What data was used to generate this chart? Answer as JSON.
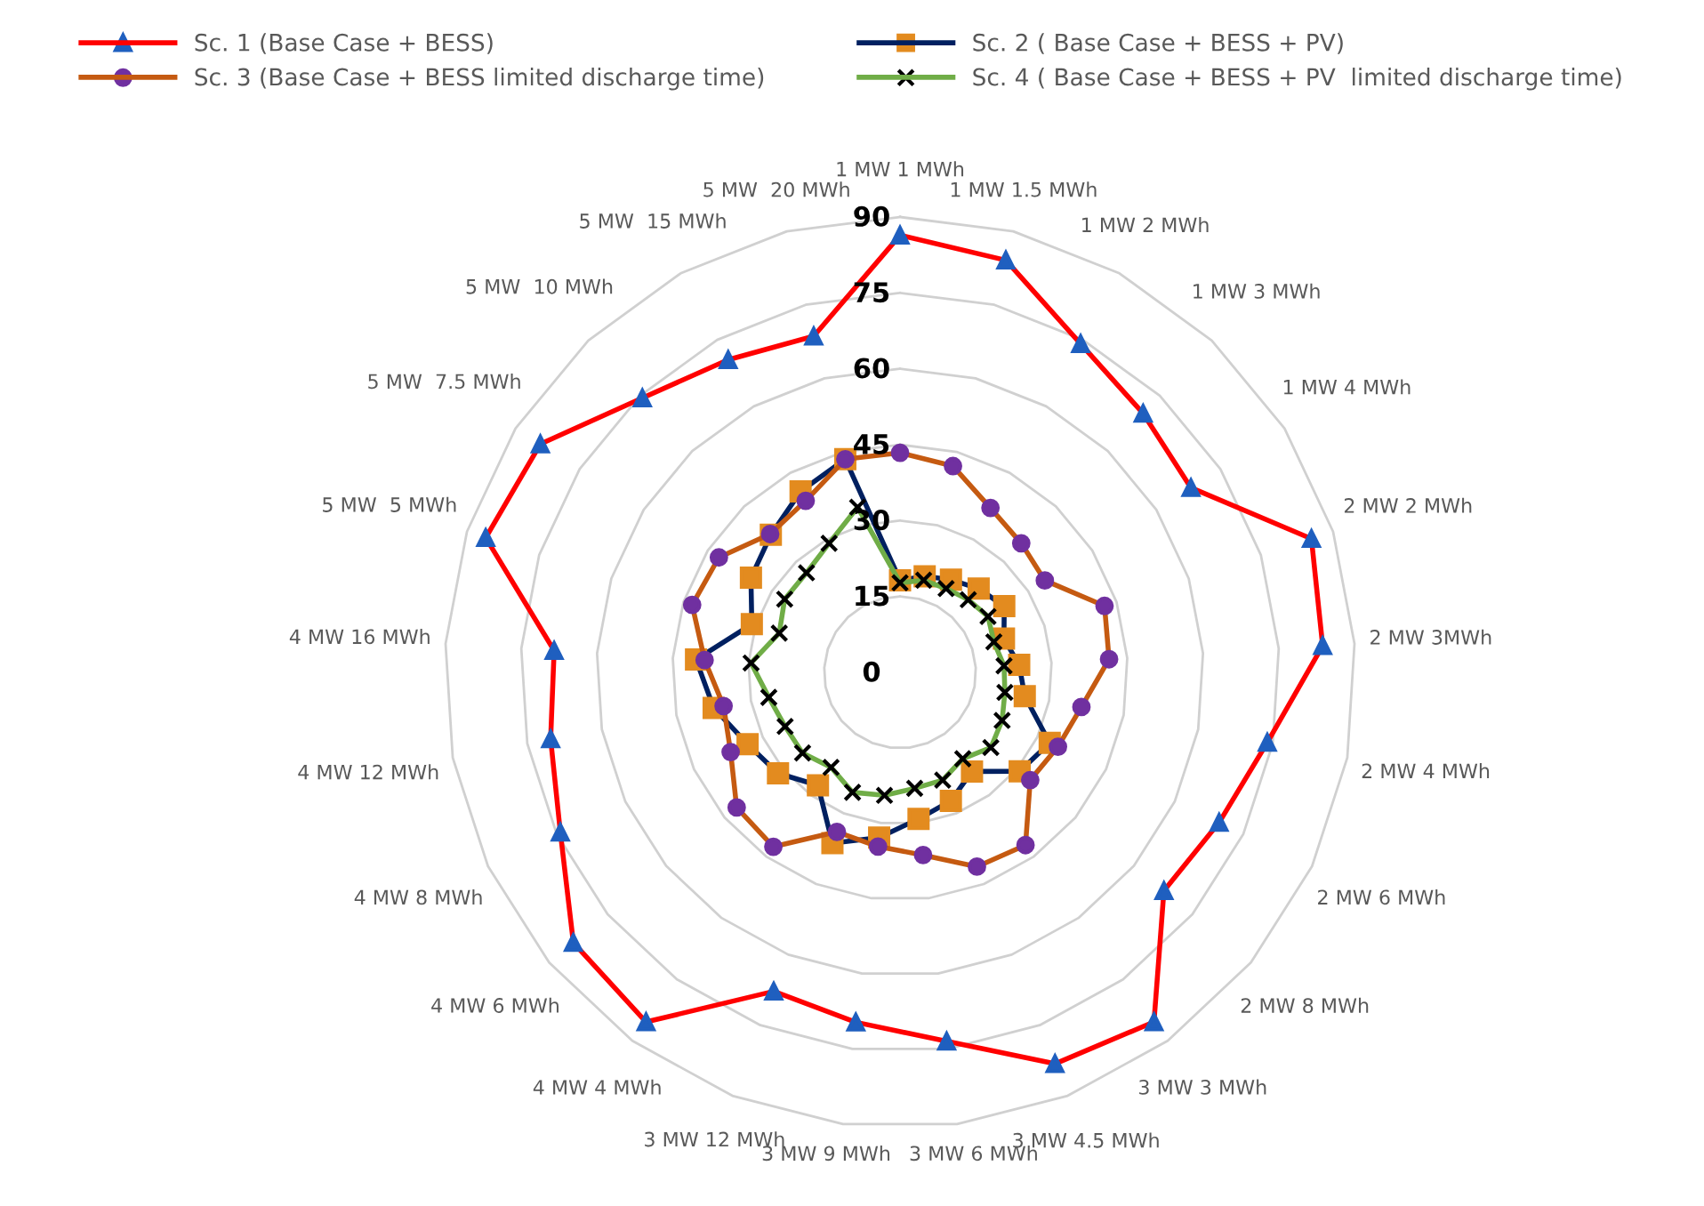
{
  "chart_data": {
    "type": "radar",
    "categories": [
      "1 MW 1 MWh",
      "1 MW 1.5 MWh",
      "1 MW 2 MWh",
      "1 MW 3 MWh",
      "1 MW 4 MWh",
      "2 MW 2 MWh",
      "2 MW 3MWh",
      "2 MW 4 MWh",
      "2 MW 6 MWh",
      "2 MW 8 MWh",
      "3 MW 3 MWh",
      "3 MW 4.5 MWh",
      "3 MW 6 MWh",
      "3 MW 9 MWh",
      "3 MW 12 MWh",
      "4 MW 4 MWh",
      "4 MW 6 MWh",
      "4 MW 8 MWh",
      "4 MW 12 MWh",
      "4 MW 16 MWh",
      "5 MW  5 MWh",
      "5 MW  7.5 MWh",
      "5 MW  10 MWh",
      "5 MW  15 MWh",
      "5 MW  20 MWh"
    ],
    "series": [
      {
        "name": "Sc. 1 (Base Case + BESS)",
        "color": "#ff0000",
        "marker": "triangle",
        "values": [
          86.4,
          84.1,
          74.1,
          70.2,
          68.1,
          85.5,
          83.7,
          73.9,
          69.7,
          67.7,
          85.4,
          83.2,
          73.5,
          69.7,
          67.8,
          85.4,
          83.8,
          74.2,
          70.3,
          68.5,
          86.1,
          84.2,
          74.4,
          70.5,
          68.6
        ]
      },
      {
        "name": "Sc. 2 ( Base Case + BESS + PV)",
        "color": "#002060",
        "marker": "square",
        "values": [
          18.2,
          19.6,
          20.9,
          22.7,
          24.4,
          21.6,
          23.6,
          25.1,
          32.7,
          30.7,
          24.2,
          27.3,
          29.2,
          32.9,
          36.3,
          27.6,
          31.3,
          33.3,
          37.5,
          40.4,
          30.8,
          34.9,
          37.3,
          40.8,
          43.5
        ]
      },
      {
        "name": "Sc. 3 (Base Case + BESS limited discharge time)",
        "color": "#c55a11",
        "marker": "circle",
        "values": [
          43.4,
          42.1,
          37.1,
          35.0,
          33.9,
          42.5,
          41.4,
          36.5,
          34.5,
          33.4,
          42.2,
          41.3,
          36.4,
          34.7,
          33.9,
          42.6,
          41.9,
          37.0,
          35.5,
          38.7,
          43.2,
          42.4,
          37.5,
          38.7,
          43.5
        ]
      },
      {
        "name": "Sc. 4 ( Base Case + BESS + PV  limited discharge time)",
        "color": "#70ad47",
        "marker": "cross",
        "values": [
          17.7,
          18.8,
          18.9,
          19.7,
          20.6,
          19.5,
          20.6,
          21.1,
          22.3,
          23.3,
          21.1,
          22.9,
          23.1,
          24.5,
          25.5,
          23.2,
          25.0,
          25.1,
          26.4,
          29.5,
          25.1,
          27.0,
          27.0,
          29.1,
          33.7
        ]
      }
    ],
    "ylim": [
      0,
      90
    ],
    "yticks": [
      0,
      15,
      30,
      45,
      60,
      75,
      90
    ],
    "grid": true,
    "legend": "top"
  }
}
